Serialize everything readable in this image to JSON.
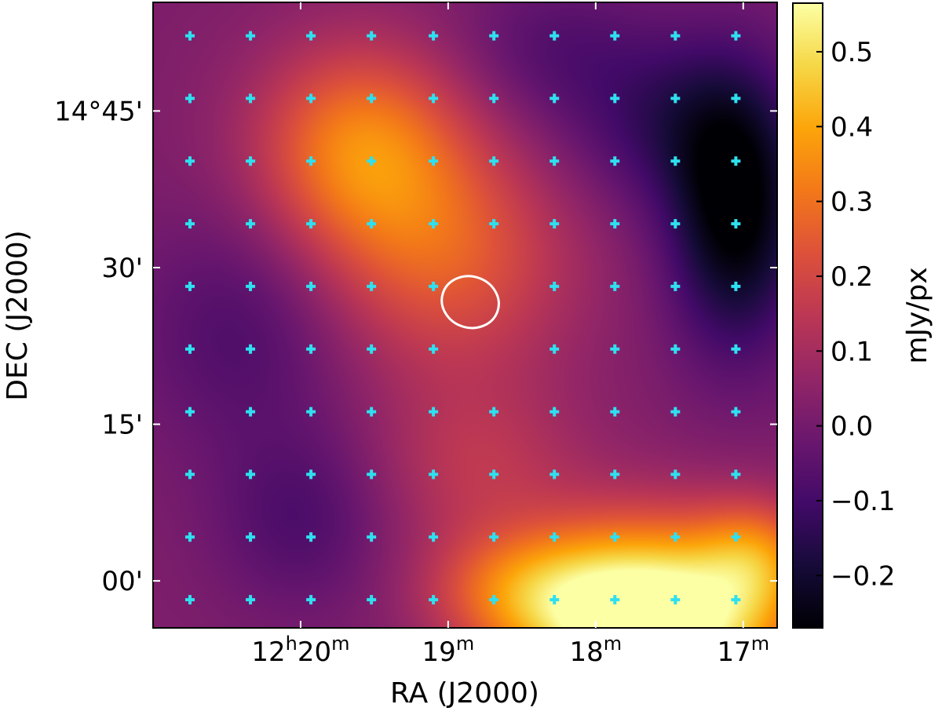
{
  "chart_data": {
    "type": "heatmap",
    "xlabel": "RA (J2000)",
    "ylabel": "DEC  (J2000)",
    "x_ticks": [
      {
        "value_min": 1220,
        "main": "12",
        "sup1": "h",
        "mid": "20",
        "sup2": "m"
      },
      {
        "value_min": 1219,
        "main": "",
        "sup1": "",
        "mid": "19",
        "sup2": "m"
      },
      {
        "value_min": 1218,
        "main": "",
        "sup1": "",
        "mid": "18",
        "sup2": "m"
      },
      {
        "value_min": 1217,
        "main": "",
        "sup1": "",
        "mid": "17",
        "sup2": "m"
      }
    ],
    "xlim_min": [
      1221.0,
      1216.77
    ],
    "y_ticks": [
      {
        "value_arcmin": 885,
        "label": "14°45'"
      },
      {
        "value_arcmin": 870,
        "label": "30'"
      },
      {
        "value_arcmin": 855,
        "label": "15'"
      },
      {
        "value_arcmin": 840,
        "label": "00'"
      }
    ],
    "ylim_arcmin": [
      835.5,
      895.4
    ],
    "colorbar": {
      "label": "mJy/px",
      "range": [
        -0.27,
        0.565
      ],
      "ticks": [
        0.5,
        0.4,
        0.3,
        0.2,
        0.1,
        0.0,
        -0.1,
        -0.2
      ],
      "tick_labels": [
        "0.5",
        "0.4",
        "0.3",
        "0.2",
        "0.1",
        "0.0",
        "−0.1",
        "−0.2"
      ],
      "colormap": "inferno"
    },
    "grid_points": {
      "ra_min": [
        1220.75,
        1220.34,
        1219.93,
        1219.52,
        1219.1,
        1218.69,
        1218.28,
        1217.87,
        1217.46,
        1217.05
      ],
      "dec_arcmin": [
        892.2,
        886.2,
        880.2,
        874.2,
        868.2,
        862.2,
        856.2,
        850.2,
        844.2,
        838.2
      ],
      "missing": [
        [
          4,
          5
        ],
        [
          5,
          5
        ]
      ],
      "color": "#2ee0f0"
    },
    "ellipse": {
      "ra_min": 1218.85,
      "dec_arcmin": 866.7,
      "width_min": 0.39,
      "height_arcmin": 4.9,
      "rotation_deg": 18,
      "color": "#ffffff"
    },
    "flux_blobs": [
      {
        "ra_min": 1217.62,
        "dec_arcmin": 836.0,
        "sx_min": 0.6,
        "sy_arcmin": 6.5,
        "amp": 0.68
      },
      {
        "ra_min": 1216.9,
        "dec_arcmin": 842.0,
        "sx_min": 0.28,
        "sy_arcmin": 4.0,
        "amp": 0.22
      },
      {
        "ra_min": 1218.5,
        "dec_arcmin": 839.0,
        "sx_min": 0.45,
        "sy_arcmin": 4.0,
        "amp": 0.22
      },
      {
        "ra_min": 1219.6,
        "dec_arcmin": 881.5,
        "sx_min": 0.5,
        "sy_arcmin": 7.0,
        "amp": 0.3
      },
      {
        "ra_min": 1219.0,
        "dec_arcmin": 871.0,
        "sx_min": 0.6,
        "sy_arcmin": 8.0,
        "amp": 0.22
      },
      {
        "ra_min": 1218.8,
        "dec_arcmin": 851.0,
        "sx_min": 0.5,
        "sy_arcmin": 6.0,
        "amp": 0.12
      },
      {
        "ra_min": 1217.05,
        "dec_arcmin": 875.0,
        "sx_min": 0.32,
        "sy_arcmin": 9.0,
        "amp": -0.3
      },
      {
        "ra_min": 1217.5,
        "dec_arcmin": 884.0,
        "sx_min": 0.5,
        "sy_arcmin": 6.0,
        "amp": -0.14
      },
      {
        "ra_min": 1220.4,
        "dec_arcmin": 864.0,
        "sx_min": 0.5,
        "sy_arcmin": 8.0,
        "amp": -0.1
      },
      {
        "ra_min": 1220.0,
        "dec_arcmin": 846.0,
        "sx_min": 0.4,
        "sy_arcmin": 6.0,
        "amp": -0.1
      },
      {
        "ra_min": 1218.3,
        "dec_arcmin": 891.0,
        "sx_min": 0.45,
        "sy_arcmin": 5.0,
        "amp": -0.08
      }
    ],
    "flux_baseline": 0.02
  }
}
